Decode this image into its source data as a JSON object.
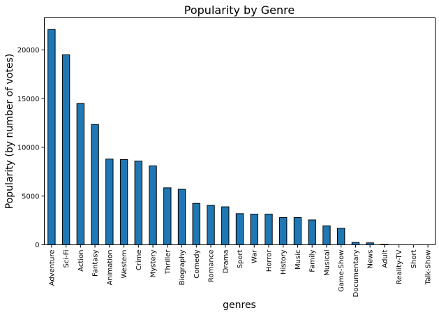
{
  "chart_data": {
    "type": "bar",
    "title": "Popularity by Genre",
    "xlabel": "genres",
    "ylabel": "Popularity (by number of votes)",
    "ylim": [
      0,
      23300
    ],
    "yticks": [
      0,
      5000,
      10000,
      15000,
      20000
    ],
    "grid": false,
    "legend": "none",
    "bar_color": "#1f77b4",
    "edge_color": "#000000",
    "categories": [
      "Adventure",
      "Sci-Fi",
      "Action",
      "Fantasy",
      "Animation",
      "Western",
      "Crime",
      "Mystery",
      "Thriller",
      "Biography",
      "Comedy",
      "Romance",
      "Drama",
      "Sport",
      "War",
      "Horror",
      "History",
      "Music",
      "Family",
      "Musical",
      "Game-Show",
      "Documentary",
      "News",
      "Adult",
      "Reality-TV",
      "Short",
      "Talk-Show"
    ],
    "values": [
      22100,
      19500,
      14500,
      12350,
      8800,
      8750,
      8600,
      8100,
      5850,
      5700,
      4250,
      4050,
      3900,
      3200,
      3150,
      3150,
      2800,
      2800,
      2550,
      1950,
      1700,
      250,
      200,
      50,
      0,
      0,
      0
    ]
  }
}
